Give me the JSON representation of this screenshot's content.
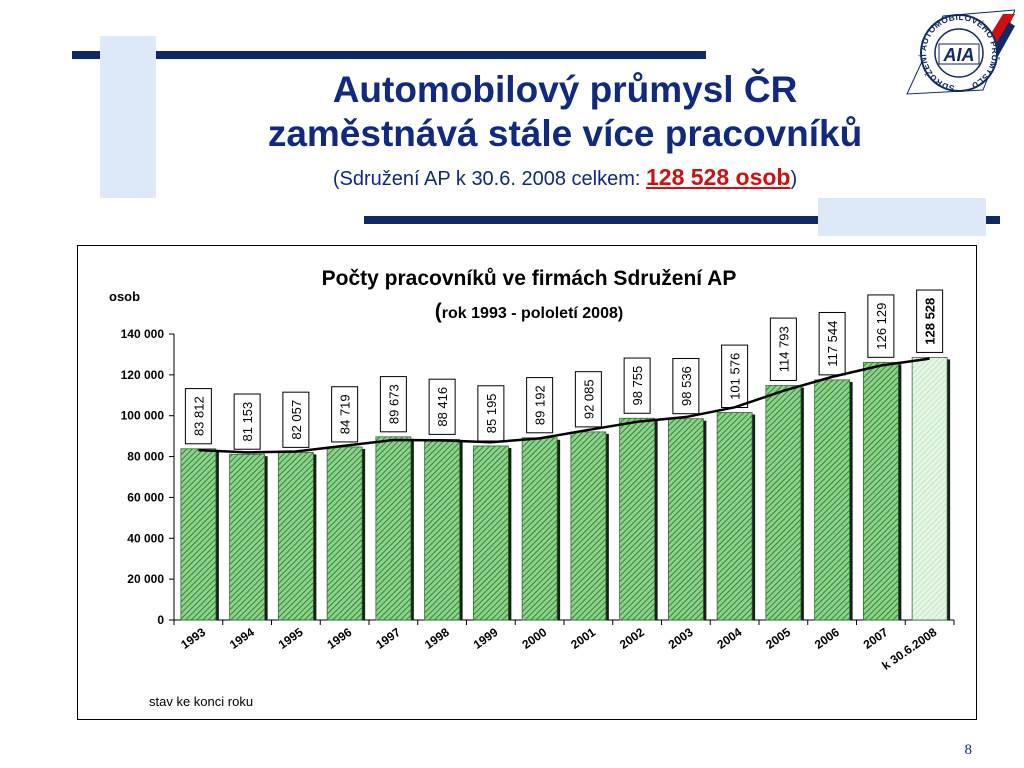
{
  "slide": {
    "title_line1": "Automobilový průmysl ČR",
    "title_line2": "zaměstnává stále více pracovníků",
    "subtitle_prefix": "(Sdružení AP k 30.6. 2008 celkem:",
    "subtitle_highlight": "128 528 osob",
    "subtitle_suffix": ")",
    "page_number": "8"
  },
  "logo": {
    "abbr": "AIA",
    "ring_text": "SDRUŽENÍ AUTOMOBILOVÉHO PRŮMYSLU",
    "colors": {
      "navy": "#0f2a66",
      "red": "#d01010"
    }
  },
  "chart_data": {
    "type": "bar",
    "title": "Počty pracovníků ve firmách Sdružení AP",
    "subtitle_open": "(",
    "subtitle": "rok 1993 - pololetí 2008)",
    "ylabel": "osob",
    "xlabel": "stav ke konci roku",
    "categories": [
      "1993",
      "1994",
      "1995",
      "1996",
      "1997",
      "1998",
      "1999",
      "2000",
      "2001",
      "2002",
      "2003",
      "2004",
      "2005",
      "2006",
      "2007",
      "k 30.6.2008"
    ],
    "values": [
      83812,
      81153,
      82057,
      84719,
      89673,
      88416,
      85195,
      89192,
      92085,
      98755,
      98536,
      101576,
      114793,
      117544,
      126129,
      128528
    ],
    "data_labels": [
      "83 812",
      "81 153",
      "82 057",
      "84 719",
      "89 673",
      "88 416",
      "85 195",
      "89 192",
      "92 085",
      "98 755",
      "98 536",
      "101 576",
      "114 793",
      "117 544",
      "126 129",
      "128 528"
    ],
    "y_ticks": [
      0,
      20000,
      40000,
      60000,
      80000,
      100000,
      120000,
      140000
    ],
    "y_tick_labels": [
      "0",
      "20 000",
      "40 000",
      "60 000",
      "80 000",
      "100 000",
      "120 000",
      "140 000"
    ],
    "ylim": [
      0,
      140000
    ],
    "grid": false,
    "trend_line": true,
    "colors": {
      "bar": "#8fd08f",
      "bar_hatch": "#2e8b2e",
      "last_bar": "#e6f6e6",
      "frame": "#000000"
    }
  }
}
